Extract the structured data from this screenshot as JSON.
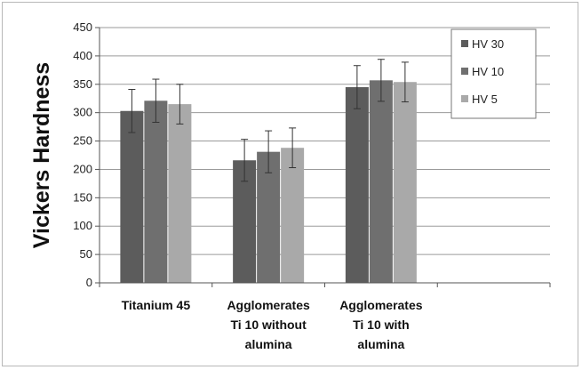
{
  "chart_data": {
    "type": "bar",
    "title": "",
    "xlabel": "",
    "ylabel": "Vickers Hardness",
    "ylim": [
      0,
      450
    ],
    "yticks": [
      "0",
      "50",
      "100",
      "150",
      "200",
      "250",
      "300",
      "350",
      "400",
      "450"
    ],
    "grid": true,
    "legend_position": "top-right",
    "categories": [
      [
        "Titanium 45"
      ],
      [
        "Agglomerates",
        "Ti 10 without",
        "alumina"
      ],
      [
        "Agglomerates",
        "Ti 10 with",
        "alumina"
      ],
      [
        ""
      ]
    ],
    "series": [
      {
        "name": "HV 30",
        "color": "#5c5c5c",
        "values": [
          303,
          216,
          345,
          null
        ],
        "errors": [
          38,
          37,
          38,
          null
        ]
      },
      {
        "name": "HV 10",
        "color": "#6f6f6f",
        "values": [
          321,
          231,
          357,
          null
        ],
        "errors": [
          38,
          37,
          37,
          null
        ]
      },
      {
        "name": "HV 5",
        "color": "#a9a9a9",
        "values": [
          315,
          238,
          354,
          null
        ],
        "errors": [
          35,
          35,
          35,
          null
        ]
      }
    ]
  }
}
